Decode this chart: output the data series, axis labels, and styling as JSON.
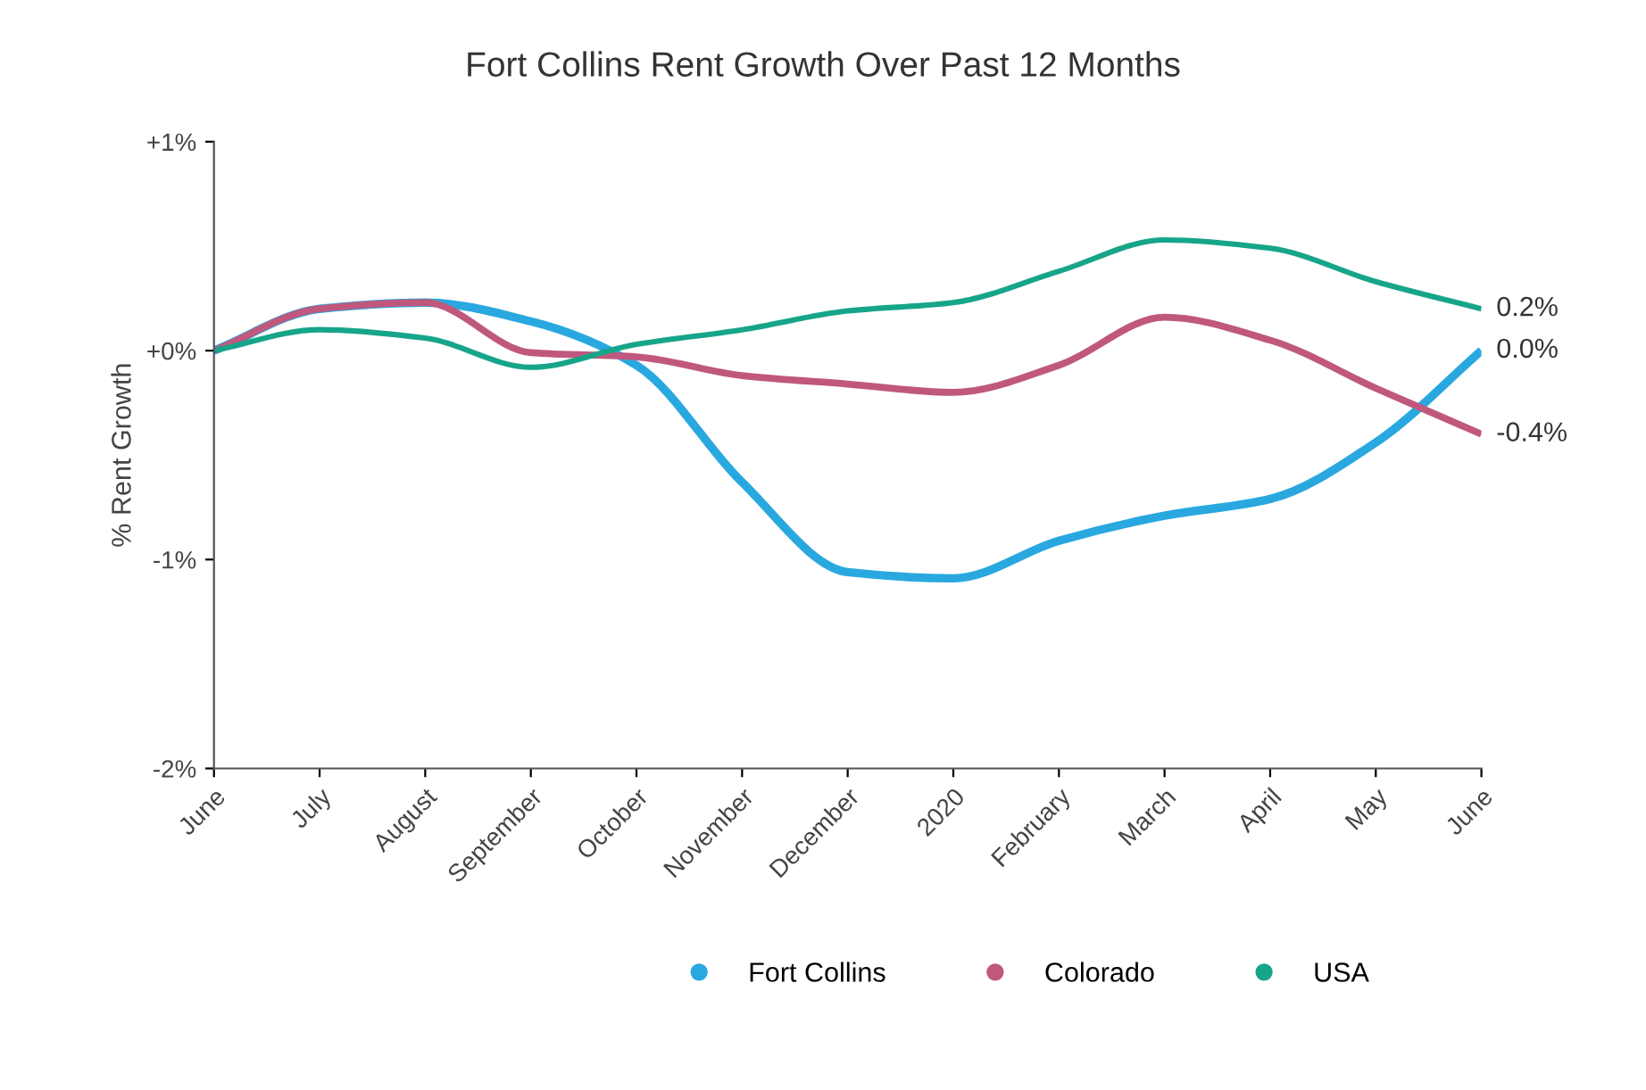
{
  "chart_data": {
    "type": "line",
    "title": "Fort Collins Rent Growth Over Past 12 Months",
    "ylabel": "% Rent Growth",
    "categories": [
      "June",
      "July",
      "August",
      "September",
      "October",
      "November",
      "December",
      "2020",
      "February",
      "March",
      "April",
      "May",
      "June"
    ],
    "series": [
      {
        "name": "Fort Collins",
        "color": "#29a8e0",
        "values": [
          0,
          0.2,
          0.23,
          0.14,
          -0.07,
          -0.63,
          -1.06,
          -1.09,
          -0.91,
          -0.79,
          -0.71,
          -0.44,
          0.0
        ],
        "value_labels": [
          null,
          null,
          null,
          null,
          null,
          null,
          null,
          null,
          null,
          null,
          null,
          null,
          "0.0%"
        ]
      },
      {
        "name": "Colorado",
        "color": "#c0587e",
        "values": [
          0,
          0.2,
          0.23,
          -0.01,
          -0.03,
          -0.12,
          -0.16,
          -0.2,
          -0.07,
          0.16,
          0.05,
          -0.18,
          -0.4
        ],
        "value_labels": [
          null,
          null,
          null,
          null,
          null,
          null,
          null,
          null,
          null,
          null,
          null,
          null,
          "-0.4%"
        ]
      },
      {
        "name": "USA",
        "color": "#17a589",
        "values": [
          0,
          0.1,
          0.06,
          -0.08,
          0.03,
          0.1,
          0.19,
          0.23,
          0.38,
          0.53,
          0.49,
          0.33,
          0.2
        ],
        "value_labels": [
          null,
          null,
          null,
          null,
          null,
          null,
          null,
          null,
          null,
          null,
          null,
          null,
          "0.2%"
        ]
      }
    ],
    "ylim": [
      -2,
      1
    ],
    "yticks": [
      {
        "value": 1,
        "label": "+1%"
      },
      {
        "value": 0,
        "label": "+0%"
      },
      {
        "value": -1,
        "label": "-1%"
      },
      {
        "value": -2,
        "label": "-2%"
      }
    ],
    "grid": false,
    "legend": "bottom",
    "marker": "none",
    "line_style": "solid"
  }
}
